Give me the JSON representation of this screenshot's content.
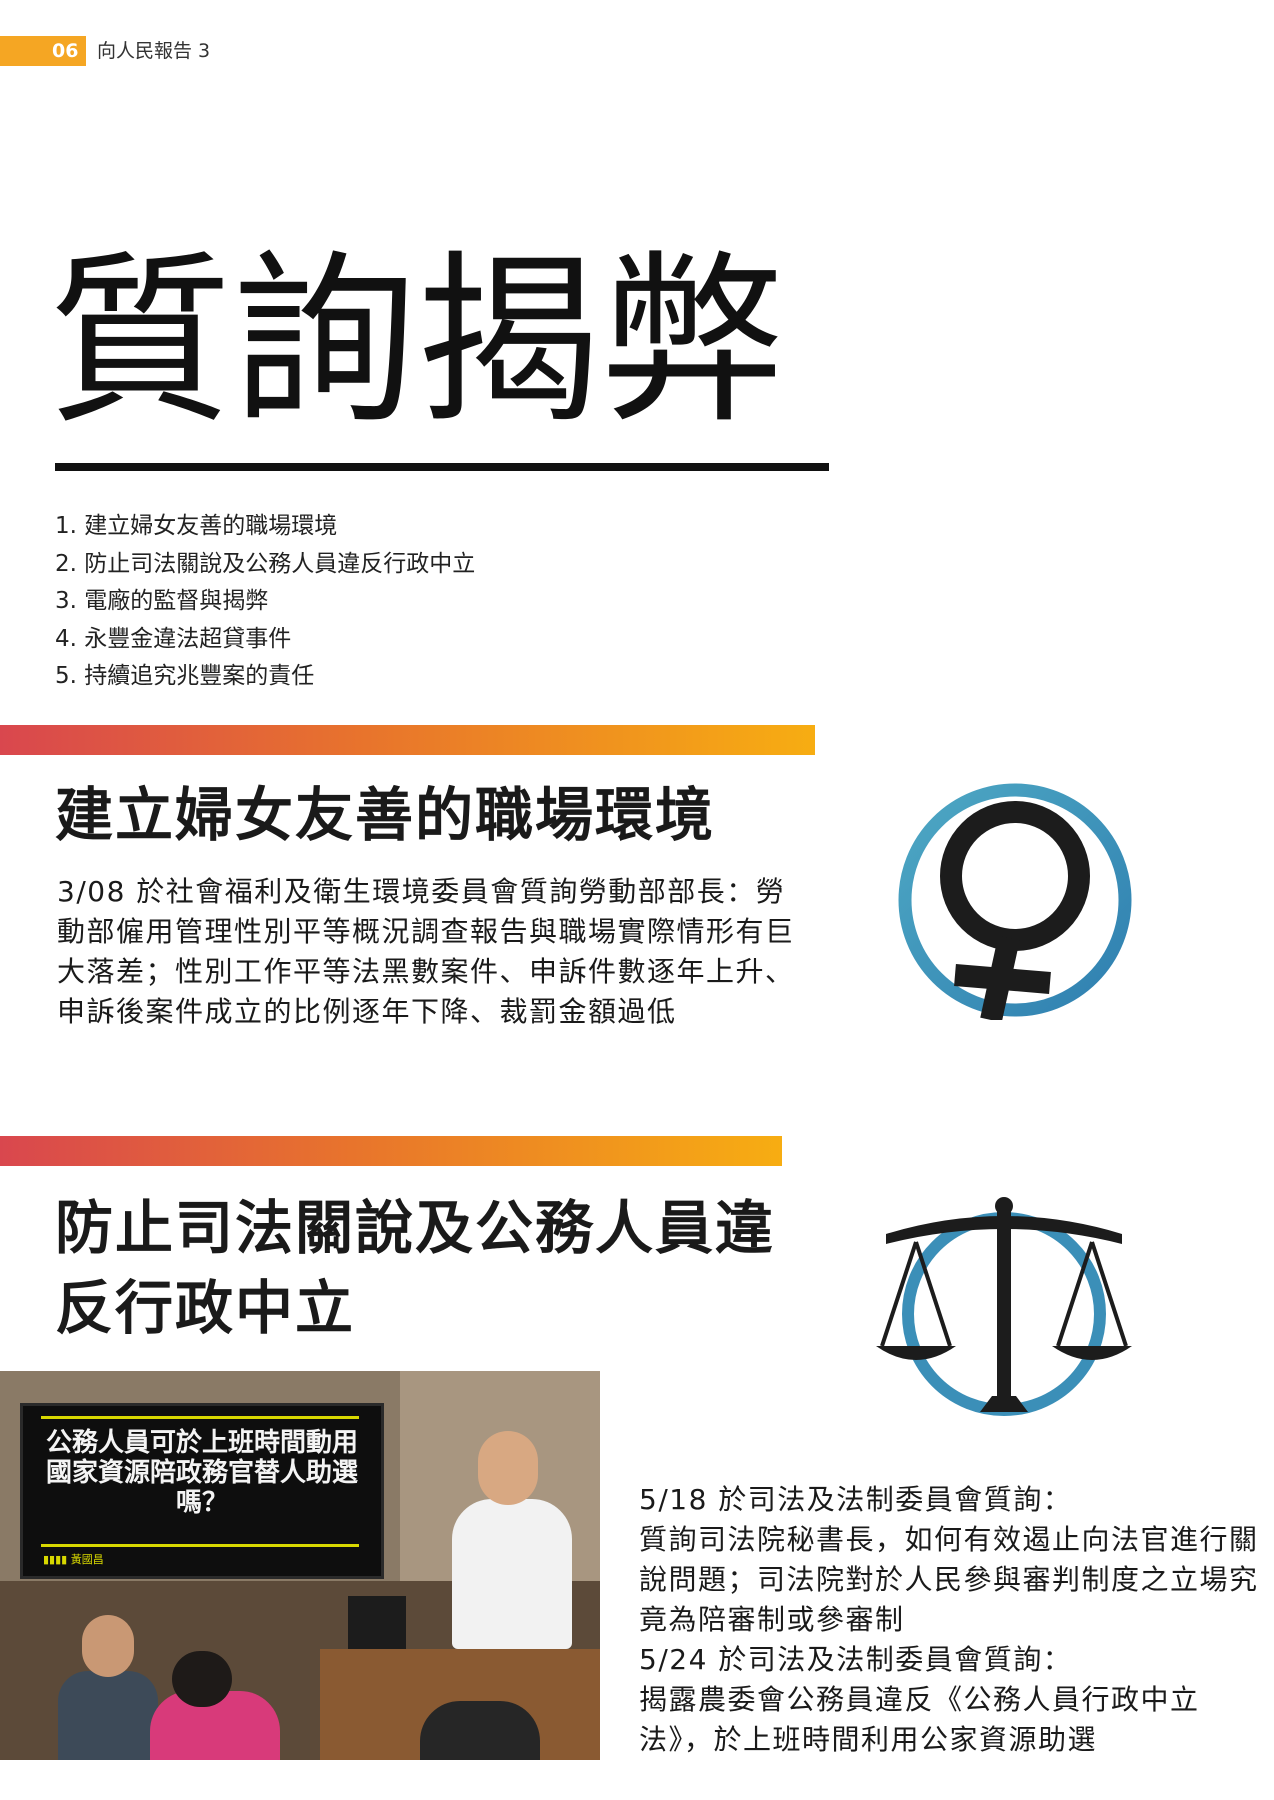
{
  "header": {
    "page_number": "06",
    "report_name": "向人民報告 3"
  },
  "title": "質詢揭弊",
  "toc": [
    "1. 建立婦女友善的職場環境",
    "2. 防止司法關說及公務人員違反行政中立",
    "3. 電廠的監督與揭弊",
    "4. 永豐金違法超貸事件",
    "5. 持續追究兆豐案的責任"
  ],
  "section1": {
    "title": "建立婦女友善的職場環境",
    "body": "3/08  於社會福利及衛生環境委員會質詢勞動部部長：勞動部僱用管理性別平等概況調查報告與職場實際情形有巨大落差；性別工作平等法黑數案件、申訴件數逐年上升、申訴後案件成立的比例逐年下降、裁罰金額過低"
  },
  "section2": {
    "title": "防止司法關說及公務人員違反行政中立",
    "photo_screen_text": "公務人員可於上班時間動用國家資源陪政務官替人助選嗎？",
    "photo_screen_footer": "▮▮▮▮ 黃國昌",
    "entries": [
      "5/18  於司法及法制委員會質詢：",
      "質詢司法院秘書長，如何有效遏止向法官進行關說問題；司法院對於人民參與審判制度之立場究竟為陪審制或參審制",
      "5/24  於司法及法制委員會質詢：",
      "揭露農委會公務員違反《公務人員行政中立法》，於上班時間利用公家資源助選"
    ]
  },
  "colors": {
    "accent_orange": "#f5a623",
    "gradient_start": "#d9474e",
    "gradient_end": "#f7ad12",
    "icon_blue": "#3b8fb8"
  },
  "icons": [
    "female-symbol-icon",
    "scales-of-justice-icon"
  ]
}
